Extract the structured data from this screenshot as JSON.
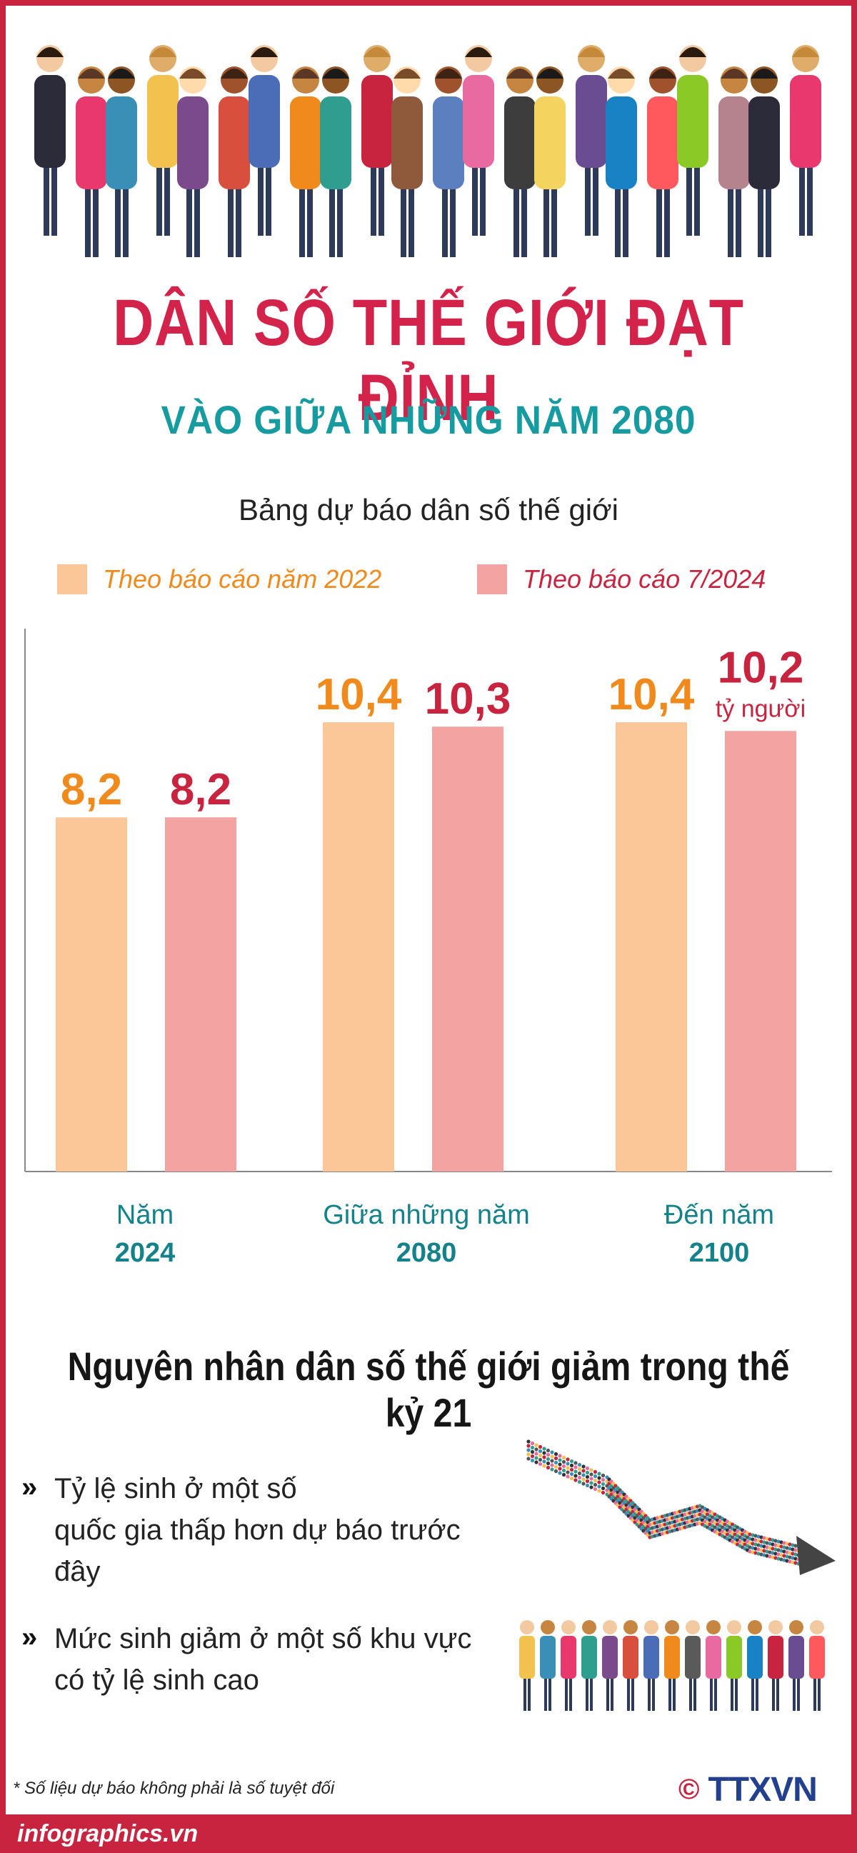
{
  "header": {
    "title": "DÂN SỐ THẾ GIỚI ĐẠT ĐỈNH",
    "subtitle": "VÀO GIỮA NHỮNG NĂM 2080"
  },
  "colors": {
    "brand_red": "#c8243f",
    "title_red": "#d4234b",
    "teal": "#169ba1",
    "orange_text": "#f08a1c",
    "bar_2022": "#fbc798",
    "bar_2024": "#f3a3a1",
    "logo_blue": "#23408e"
  },
  "chart_data": {
    "type": "bar",
    "title": "Bảng dự báo dân số thế giới",
    "categories": [
      {
        "label": "Năm",
        "year": "2024"
      },
      {
        "label": "Giữa những năm",
        "year": "2080"
      },
      {
        "label": "Đến năm",
        "year": "2100"
      }
    ],
    "series": [
      {
        "name": "Theo báo cáo năm 2022",
        "values": [
          8.2,
          10.4,
          10.4
        ],
        "labels": [
          "8,2",
          "10,4",
          "10,4"
        ],
        "color": "#fbc798",
        "label_color": "#f08a1c"
      },
      {
        "name": "Theo báo cáo 7/2024",
        "values": [
          8.2,
          10.3,
          10.2
        ],
        "labels": [
          "8,2",
          "10,3",
          "10,2"
        ],
        "color": "#f3a3a1",
        "label_color": "#c8243f"
      }
    ],
    "unit_label": "tỷ người",
    "ylim": [
      0,
      12.9
    ],
    "legend_position": "top",
    "grid": false
  },
  "reasons": {
    "title": "Nguyên nhân dân số thế giới giảm trong thế kỷ 21",
    "bullet": "»",
    "items": [
      {
        "line1": "Tỷ lệ sinh ở một số",
        "line2": "quốc gia thấp hơn dự báo trước đây"
      },
      {
        "line1": "Mức sinh giảm ở một số khu vực",
        "line2": "có tỷ lệ sinh cao"
      }
    ]
  },
  "footer": {
    "note": "* Số liệu dự báo không phải là số tuyệt đối",
    "site": "infographics.vn",
    "copyright": "©",
    "logo": "TTXVN"
  },
  "icons": [
    "crowd-illustration",
    "downward-arrow-crowd",
    "crowd-group"
  ]
}
